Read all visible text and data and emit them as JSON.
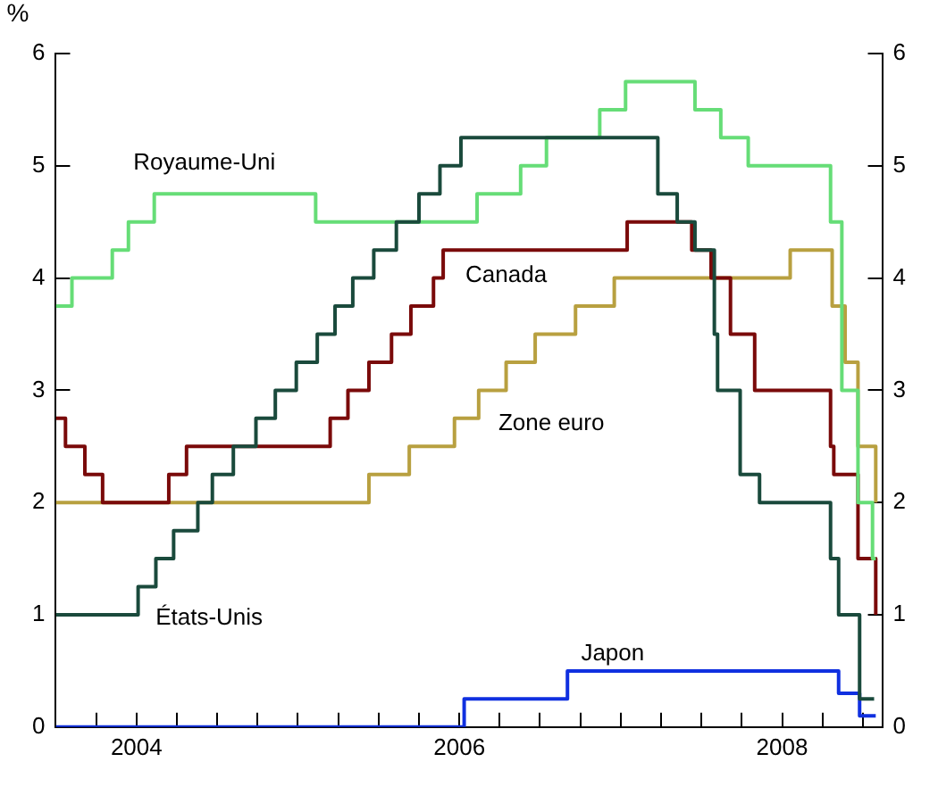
{
  "chart_data": {
    "type": "step",
    "ylabel": "%",
    "xlim": [
      2004,
      2009.12
    ],
    "xticks": [
      {
        "value": 2004.25,
        "label": null
      },
      {
        "value": 2004.5,
        "label": "2004"
      },
      {
        "value": 2004.75,
        "label": null
      },
      {
        "value": 2005,
        "label": null
      },
      {
        "value": 2005.25,
        "label": null
      },
      {
        "value": 2005.5,
        "label": null
      },
      {
        "value": 2005.75,
        "label": null
      },
      {
        "value": 2006,
        "label": null
      },
      {
        "value": 2006.25,
        "label": null
      },
      {
        "value": 2006.5,
        "label": "2006"
      },
      {
        "value": 2006.75,
        "label": null
      },
      {
        "value": 2007,
        "label": null
      },
      {
        "value": 2007.25,
        "label": null
      },
      {
        "value": 2007.5,
        "label": null
      },
      {
        "value": 2007.75,
        "label": null
      },
      {
        "value": 2008,
        "label": null
      },
      {
        "value": 2008.25,
        "label": null
      },
      {
        "value": 2008.5,
        "label": "2008"
      },
      {
        "value": 2008.75,
        "label": null
      },
      {
        "value": 2009,
        "label": null
      }
    ],
    "ylim": [
      0,
      6
    ],
    "yticks": [
      0,
      1,
      2,
      3,
      4,
      5,
      6
    ],
    "y2lim": [
      0,
      6
    ],
    "y2ticks": [
      0,
      1,
      2,
      3,
      4,
      5,
      6
    ],
    "grid": false,
    "legend": false,
    "marker": "none",
    "series": [
      {
        "name": "États-Unis",
        "color": "#1a4a3c",
        "x": [
          2004,
          2004.51,
          2004.62,
          2004.73,
          2004.88,
          2004.97,
          2005.1,
          2005.24,
          2005.36,
          2005.49,
          2005.62,
          2005.73,
          2005.84,
          2005.97,
          2006.11,
          2006.25,
          2006.38,
          2006.51,
          2007.73,
          2007.85,
          2007.96,
          2008.08,
          2008.1,
          2008.24,
          2008.36,
          2008.8,
          2008.85,
          2008.98,
          2009.07
        ],
        "values": [
          1,
          1.25,
          1.5,
          1.75,
          2,
          2.25,
          2.5,
          2.75,
          3,
          3.25,
          3.5,
          3.75,
          4,
          4.25,
          4.5,
          4.75,
          5,
          5.25,
          4.75,
          4.5,
          4.25,
          3.5,
          3,
          2.25,
          2,
          1.5,
          1,
          0.25,
          0.25
        ]
      },
      {
        "name": "Royaume-Uni",
        "color": "#66dd77",
        "x": [
          2004,
          2004.1,
          2004.35,
          2004.45,
          2004.61,
          2005.61,
          2006.61,
          2006.88,
          2007.04,
          2007.37,
          2007.53,
          2007.96,
          2008.12,
          2008.29,
          2008.8,
          2008.87,
          2008.97,
          2009.06,
          2009.08
        ],
        "values": [
          3.75,
          4,
          4.25,
          4.5,
          4.75,
          4.5,
          4.75,
          5,
          5.25,
          5.5,
          5.75,
          5.5,
          5.25,
          5,
          4.5,
          3,
          2,
          1.5,
          1.5
        ]
      },
      {
        "name": "Canada",
        "color": "#7a0a0a",
        "x": [
          2004,
          2004.06,
          2004.18,
          2004.29,
          2004.7,
          2004.81,
          2005.7,
          2005.81,
          2005.94,
          2006.08,
          2006.2,
          2006.34,
          2006.4,
          2007.54,
          2007.94,
          2008.06,
          2008.18,
          2008.33,
          2008.8,
          2008.82,
          2008.97,
          2009.08
        ],
        "values": [
          2.75,
          2.5,
          2.25,
          2,
          2.25,
          2.5,
          2.75,
          3,
          3.25,
          3.5,
          3.75,
          4,
          4.25,
          4.5,
          4.25,
          4,
          3.5,
          3,
          2.5,
          2.25,
          1.5,
          1
        ]
      },
      {
        "name": "Zone euro",
        "color": "#b8a040",
        "x": [
          2004,
          2005.94,
          2006.19,
          2006.47,
          2006.62,
          2006.79,
          2006.97,
          2007.22,
          2007.46,
          2008.55,
          2008.81,
          2008.89,
          2008.97,
          2009.08
        ],
        "values": [
          2,
          2.25,
          2.5,
          2.75,
          3,
          3.25,
          3.5,
          3.75,
          4,
          4.25,
          3.75,
          3.25,
          2.5,
          2
        ]
      },
      {
        "name": "Japon",
        "color": "#1030e0",
        "x": [
          2004,
          2006.53,
          2007.17,
          2008.85,
          2008.98,
          2009.08
        ],
        "values": [
          0,
          0.25,
          0.5,
          0.3,
          0.1,
          0.1
        ]
      }
    ]
  }
}
